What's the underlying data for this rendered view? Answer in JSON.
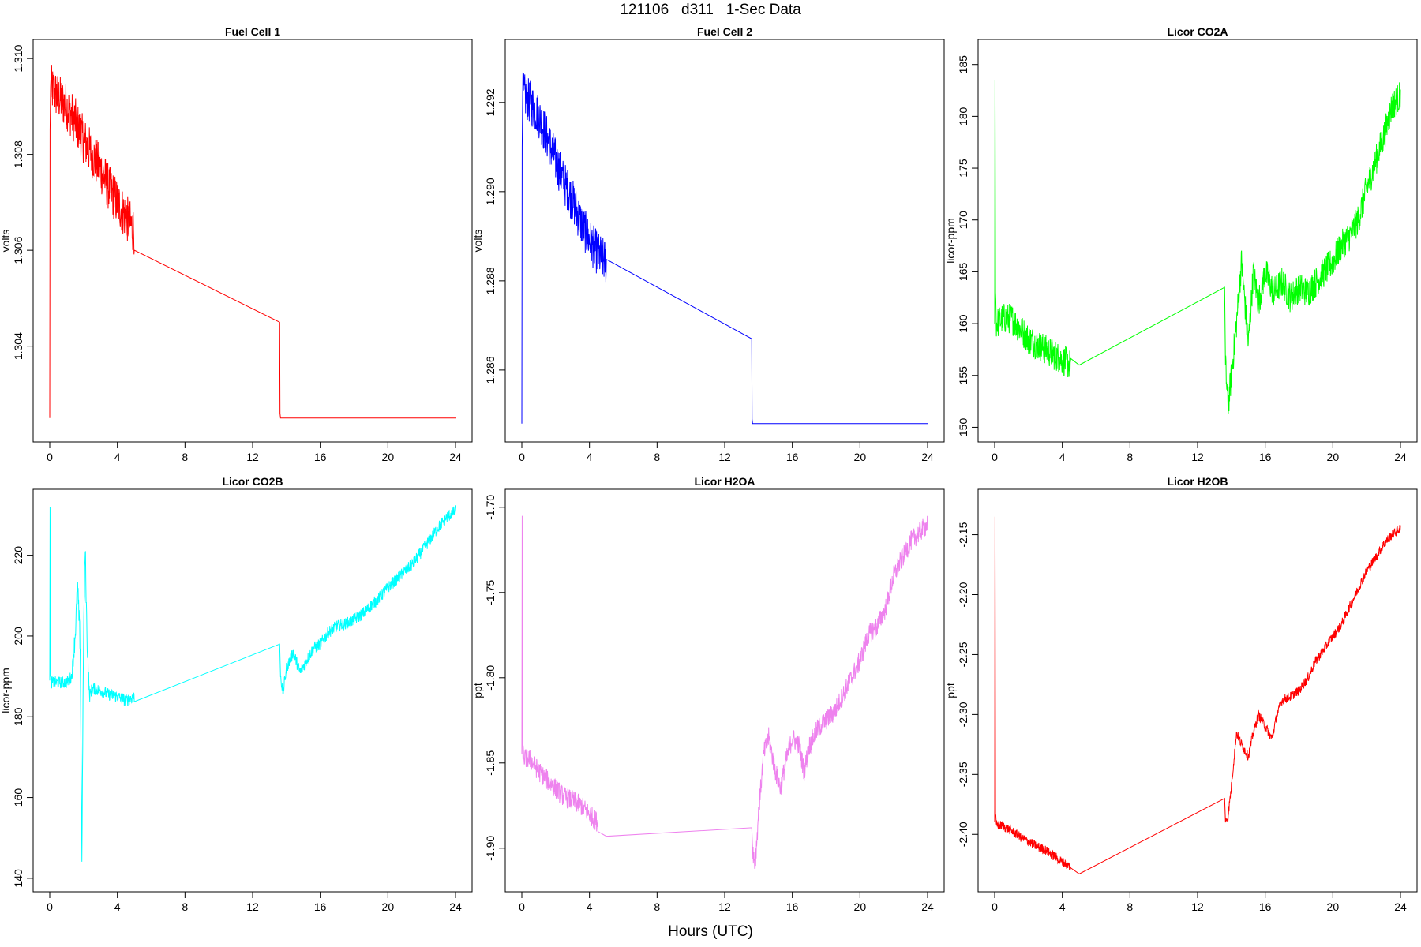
{
  "figure": {
    "suptitle": "121106   d311   1-Sec Data",
    "xlabel": "Hours (UTC)"
  },
  "chart_data": [
    {
      "type": "line",
      "title": "Fuel Cell 1",
      "ylabel": "volts",
      "color": "#ff0000",
      "xlim": [
        0,
        24
      ],
      "ylim": [
        1.3022,
        1.3102
      ],
      "xticks": [
        0,
        4,
        8,
        12,
        16,
        20,
        24
      ],
      "yticks": [
        1.304,
        1.306,
        1.308,
        1.31
      ],
      "ytick_labels": [
        "1.304",
        "1.306",
        "1.308",
        "1.310"
      ],
      "x": [
        0,
        0.02,
        0.05,
        0.5,
        1,
        1.5,
        2,
        2.5,
        3,
        3.5,
        4,
        4.5,
        5,
        13.6,
        13.62,
        13.65,
        24
      ],
      "y": [
        1.3025,
        1.3085,
        1.3094,
        1.3092,
        1.309,
        1.3087,
        1.3083,
        1.308,
        1.3077,
        1.3073,
        1.307,
        1.3067,
        1.3064,
        1.3045,
        1.3026,
        1.3025,
        1.3025
      ],
      "noise": [
        0,
        0,
        0.0005,
        0.0005,
        0.0005,
        0.0005,
        0.0005,
        0.0005,
        0.0005,
        0.0005,
        0.0005,
        0.0005,
        0.0005,
        0,
        0,
        0,
        0
      ]
    },
    {
      "type": "line",
      "title": "Fuel Cell 2",
      "ylabel": "volts",
      "color": "#0000ff",
      "xlim": [
        0,
        24
      ],
      "ylim": [
        1.2846,
        1.2932
      ],
      "xticks": [
        0,
        4,
        8,
        12,
        16,
        20,
        24
      ],
      "yticks": [
        1.286,
        1.288,
        1.29,
        1.292
      ],
      "ytick_labels": [
        "1.286",
        "1.288",
        "1.290",
        "1.292"
      ],
      "x": [
        0,
        0.02,
        0.05,
        0.5,
        1,
        1.5,
        2,
        2.5,
        3,
        3.5,
        4,
        4.5,
        5,
        13.6,
        13.62,
        13.65,
        24
      ],
      "y": [
        1.2848,
        1.291,
        1.2922,
        1.292,
        1.2917,
        1.2912,
        1.2907,
        1.2902,
        1.2898,
        1.2893,
        1.2889,
        1.2886,
        1.2884,
        1.2867,
        1.2849,
        1.2848,
        1.2848
      ],
      "noise": [
        0,
        0,
        0.0005,
        0.0005,
        0.0005,
        0.0005,
        0.0005,
        0.0005,
        0.0005,
        0.0005,
        0.0005,
        0.0005,
        0.0005,
        0,
        0,
        0,
        0
      ]
    },
    {
      "type": "line",
      "title": "Licor CO2A",
      "ylabel": "licor-ppm",
      "color": "#00ff00",
      "xlim": [
        0,
        24
      ],
      "ylim": [
        149.5,
        186.5
      ],
      "xticks": [
        0,
        4,
        8,
        12,
        16,
        20,
        24
      ],
      "yticks": [
        150,
        155,
        160,
        165,
        170,
        175,
        180,
        185
      ],
      "ytick_labels": [
        "150",
        "155",
        "160",
        "165",
        "170",
        "175",
        "180",
        "185"
      ],
      "x": [
        0,
        0.02,
        0.05,
        0.1,
        0.5,
        1,
        1.5,
        2,
        2.5,
        3,
        3.5,
        4,
        4.5,
        5,
        13.6,
        13.65,
        13.8,
        14,
        14.3,
        14.6,
        15,
        15.3,
        15.6,
        16,
        16.5,
        17,
        17.5,
        18,
        18.5,
        19,
        19.5,
        20,
        20.5,
        21,
        21.5,
        22,
        22.5,
        23,
        23.5,
        24
      ],
      "y": [
        160,
        183.5,
        163,
        160,
        160.5,
        160.5,
        159.5,
        158.5,
        158,
        157.5,
        157,
        156.5,
        156,
        156,
        163.5,
        156,
        152,
        155,
        160,
        166,
        158,
        165,
        162,
        165,
        163,
        164,
        162.5,
        163.5,
        163,
        164,
        165,
        166,
        167.5,
        168.5,
        170,
        173,
        175.5,
        178,
        181,
        182
      ],
      "noise": [
        0,
        0,
        1.5,
        1.5,
        1.5,
        1.5,
        1.5,
        1.5,
        1.5,
        1.5,
        1.5,
        1.5,
        1.5,
        0,
        0,
        1.5,
        1.5,
        1.5,
        1.5,
        1.5,
        1.5,
        1.5,
        1.5,
        1.5,
        1.5,
        1.5,
        1.5,
        1.5,
        1.5,
        1.5,
        1.5,
        1.5,
        1.5,
        1.5,
        1.5,
        1.5,
        1.5,
        1.5,
        1.5,
        1.5
      ]
    },
    {
      "type": "line",
      "title": "Licor CO2B",
      "ylabel": "licor-ppm",
      "color": "#00ffff",
      "xlim": [
        0,
        24
      ],
      "ylim": [
        139,
        234
      ],
      "xticks": [
        0,
        4,
        8,
        12,
        16,
        20,
        24
      ],
      "yticks": [
        140,
        160,
        180,
        200,
        220
      ],
      "ytick_labels": [
        "140",
        "160",
        "180",
        "200",
        "220"
      ],
      "x": [
        0,
        0.02,
        0.05,
        0.1,
        0.5,
        1,
        1.3,
        1.5,
        1.65,
        1.8,
        1.9,
        2,
        2.1,
        2.2,
        2.35,
        2.5,
        3,
        3.5,
        4,
        4.5,
        5,
        13.6,
        13.65,
        13.8,
        14,
        14.4,
        14.8,
        15.2,
        15.6,
        16,
        16.5,
        17,
        17.5,
        18,
        18.5,
        19,
        19.5,
        20,
        20.5,
        21,
        21.5,
        22,
        22.5,
        23,
        23.5,
        24
      ],
      "y": [
        189,
        232,
        190,
        188.5,
        188.5,
        188.5,
        190,
        200,
        212,
        198,
        145,
        200,
        222,
        200,
        185,
        187,
        186.5,
        185.5,
        185,
        184,
        185,
        198,
        190,
        186,
        192,
        196,
        191,
        194,
        197,
        198,
        201,
        202.5,
        203,
        204,
        205.5,
        207.5,
        209.5,
        212,
        214,
        216,
        218,
        221,
        224,
        227,
        229.5,
        231
      ],
      "noise": [
        0,
        0,
        1.5,
        1.5,
        1.5,
        1.5,
        1.5,
        3,
        3,
        3,
        2,
        3,
        3,
        3,
        1.5,
        1.5,
        1.5,
        1.5,
        1.5,
        1.5,
        1.5,
        0,
        1.5,
        1.5,
        1.5,
        1.5,
        1.5,
        1.5,
        1.5,
        1.5,
        1.5,
        1.5,
        1.5,
        1.5,
        1.5,
        1.5,
        1.5,
        1.5,
        1.5,
        1.5,
        1.5,
        1.5,
        1.5,
        1.5,
        1.5,
        1.5
      ]
    },
    {
      "type": "line",
      "title": "Licor H2OA",
      "ylabel": "ppt",
      "color": "#ee82ee",
      "xlim": [
        0,
        24
      ],
      "ylim": [
        -1.92,
        -1.695
      ],
      "xticks": [
        0,
        4,
        8,
        12,
        16,
        20,
        24
      ],
      "yticks": [
        -1.9,
        -1.85,
        -1.8,
        -1.75,
        -1.7
      ],
      "ytick_labels": [
        "-1.90",
        "-1.85",
        "-1.80",
        "-1.75",
        "-1.70"
      ],
      "x": [
        0,
        0.02,
        0.05,
        0.1,
        0.5,
        1,
        1.5,
        2,
        2.5,
        3,
        3.5,
        4,
        4.5,
        5,
        13.6,
        13.65,
        13.8,
        14,
        14.3,
        14.6,
        15,
        15.3,
        15.6,
        16,
        16.4,
        16.7,
        17,
        17.5,
        18,
        18.5,
        19,
        19.5,
        20,
        20.5,
        21,
        21.5,
        22,
        22.5,
        23,
        23.5,
        24
      ],
      "y": [
        -1.845,
        -1.705,
        -1.84,
        -1.847,
        -1.848,
        -1.855,
        -1.86,
        -1.865,
        -1.87,
        -1.872,
        -1.875,
        -1.88,
        -1.885,
        -1.893,
        -1.888,
        -1.9,
        -1.91,
        -1.88,
        -1.845,
        -1.835,
        -1.855,
        -1.865,
        -1.85,
        -1.835,
        -1.84,
        -1.855,
        -1.84,
        -1.83,
        -1.825,
        -1.82,
        -1.81,
        -1.8,
        -1.79,
        -1.775,
        -1.77,
        -1.76,
        -1.74,
        -1.73,
        -1.72,
        -1.715,
        -1.71
      ],
      "noise": [
        0,
        0,
        0.006,
        0.006,
        0.006,
        0.006,
        0.006,
        0.006,
        0.006,
        0.006,
        0.006,
        0.006,
        0.006,
        0,
        0,
        0.006,
        0.006,
        0.006,
        0.006,
        0.006,
        0.006,
        0.006,
        0.006,
        0.006,
        0.006,
        0.006,
        0.006,
        0.006,
        0.006,
        0.006,
        0.006,
        0.006,
        0.006,
        0.006,
        0.006,
        0.006,
        0.006,
        0.006,
        0.006,
        0.006,
        0.006
      ]
    },
    {
      "type": "line",
      "title": "Licor H2OB",
      "ylabel": "ppt",
      "color": "#ff0000",
      "xlim": [
        0,
        24
      ],
      "ylim": [
        -2.44,
        -2.12
      ],
      "xticks": [
        0,
        4,
        8,
        12,
        16,
        20,
        24
      ],
      "yticks": [
        -2.4,
        -2.35,
        -2.3,
        -2.25,
        -2.2,
        -2.15
      ],
      "ytick_labels": [
        "-2.40",
        "-2.35",
        "-2.30",
        "-2.25",
        "-2.20",
        "-2.15"
      ],
      "x": [
        0,
        0.02,
        0.05,
        0.1,
        0.5,
        1,
        1.5,
        2,
        2.5,
        3,
        3.5,
        4,
        4.5,
        5,
        13.6,
        13.65,
        13.8,
        14,
        14.3,
        14.6,
        15,
        15.3,
        15.6,
        16,
        16.4,
        16.7,
        17,
        17.5,
        18,
        18.5,
        19,
        19.5,
        20,
        20.5,
        21,
        21.5,
        22,
        22.5,
        23,
        23.5,
        24
      ],
      "y": [
        -2.39,
        -2.135,
        -2.385,
        -2.392,
        -2.393,
        -2.397,
        -2.402,
        -2.406,
        -2.41,
        -2.413,
        -2.418,
        -2.423,
        -2.427,
        -2.433,
        -2.37,
        -2.39,
        -2.385,
        -2.36,
        -2.315,
        -2.325,
        -2.335,
        -2.315,
        -2.3,
        -2.31,
        -2.32,
        -2.3,
        -2.288,
        -2.285,
        -2.28,
        -2.27,
        -2.255,
        -2.245,
        -2.235,
        -2.225,
        -2.21,
        -2.195,
        -2.18,
        -2.17,
        -2.158,
        -2.15,
        -2.145
      ],
      "noise": [
        0,
        0,
        0.004,
        0.004,
        0.004,
        0.004,
        0.004,
        0.004,
        0.004,
        0.004,
        0.004,
        0.004,
        0.004,
        0,
        0,
        0.004,
        0.004,
        0.004,
        0.004,
        0.004,
        0.004,
        0.004,
        0.004,
        0.004,
        0.004,
        0.004,
        0.004,
        0.004,
        0.004,
        0.004,
        0.004,
        0.004,
        0.004,
        0.004,
        0.004,
        0.004,
        0.004,
        0.004,
        0.004,
        0.004,
        0.004
      ]
    }
  ]
}
